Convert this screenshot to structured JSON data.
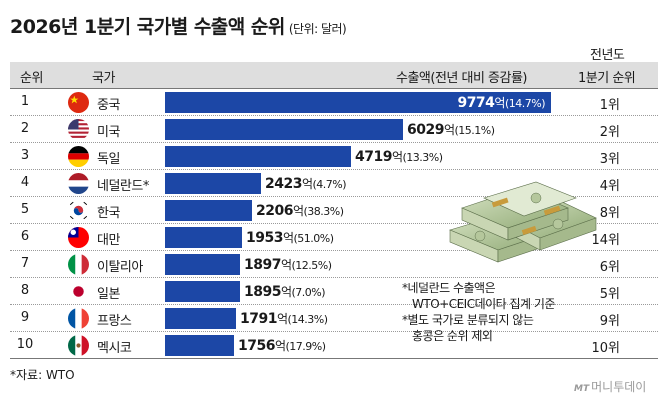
{
  "title": "2026년 1분기 국가별 수출액 순위",
  "unit_note": "(단위: 달러)",
  "header": {
    "prev_top": "전년도",
    "rank": "순위",
    "country": "국가",
    "value": "수출액(전년 대비 증감률)",
    "prev_bottom": "1분기 순위"
  },
  "colors": {
    "bar": "#1c47a6",
    "header_bg": "#dedede"
  },
  "chart_data": {
    "type": "bar",
    "orientation": "horizontal",
    "title": "2026년 1분기 국가별 수출액 순위",
    "unit": "억 달러",
    "categories": [
      "중국",
      "미국",
      "독일",
      "네덜란드*",
      "한국",
      "대만",
      "이탈리아",
      "일본",
      "프랑스",
      "멕시코"
    ],
    "values": [
      9774,
      6029,
      4719,
      2423,
      2206,
      1953,
      1897,
      1895,
      1791,
      1756
    ],
    "rows": [
      {
        "rank": "1",
        "country": "중국",
        "flag": "china-flag-icon",
        "value": "9774",
        "eok": "억",
        "change": "(14.7%)",
        "prev_rank": "1위"
      },
      {
        "rank": "2",
        "country": "미국",
        "flag": "usa-flag-icon",
        "value": "6029",
        "eok": "억",
        "change": "(15.1%)",
        "prev_rank": "2위"
      },
      {
        "rank": "3",
        "country": "독일",
        "flag": "germany-flag-icon",
        "value": "4719",
        "eok": "억",
        "change": "(13.3%)",
        "prev_rank": "3위"
      },
      {
        "rank": "4",
        "country": "네덜란드*",
        "flag": "netherlands-flag-icon",
        "value": "2423",
        "eok": "억",
        "change": "(4.7%)",
        "prev_rank": "4위"
      },
      {
        "rank": "5",
        "country": "한국",
        "flag": "korea-flag-icon",
        "value": "2206",
        "eok": "억",
        "change": "(38.3%)",
        "prev_rank": "8위"
      },
      {
        "rank": "6",
        "country": "대만",
        "flag": "taiwan-flag-icon",
        "value": "1953",
        "eok": "억",
        "change": "(51.0%)",
        "prev_rank": "14위"
      },
      {
        "rank": "7",
        "country": "이탈리아",
        "flag": "italy-flag-icon",
        "value": "1897",
        "eok": "억",
        "change": "(12.5%)",
        "prev_rank": "6위"
      },
      {
        "rank": "8",
        "country": "일본",
        "flag": "japan-flag-icon",
        "value": "1895",
        "eok": "억",
        "change": "(7.0%)",
        "prev_rank": "5위"
      },
      {
        "rank": "9",
        "country": "프랑스",
        "flag": "france-flag-icon",
        "value": "1791",
        "eok": "억",
        "change": "(14.3%)",
        "prev_rank": "9위"
      },
      {
        "rank": "10",
        "country": "멕시코",
        "flag": "mexico-flag-icon",
        "value": "1756",
        "eok": "억",
        "change": "(17.9%)",
        "prev_rank": "10위"
      }
    ]
  },
  "notes": [
    "*네덜란드 수출액은",
    "WTO+CEIC데이타 집계 기준",
    "*별도 국가로 분류되지 않는",
    "홍콩은 순위 제외"
  ],
  "source": "*자료: WTO",
  "brand": {
    "logo": "MT",
    "name": "머니투데이"
  },
  "image_icon": "money-stacks-icon"
}
